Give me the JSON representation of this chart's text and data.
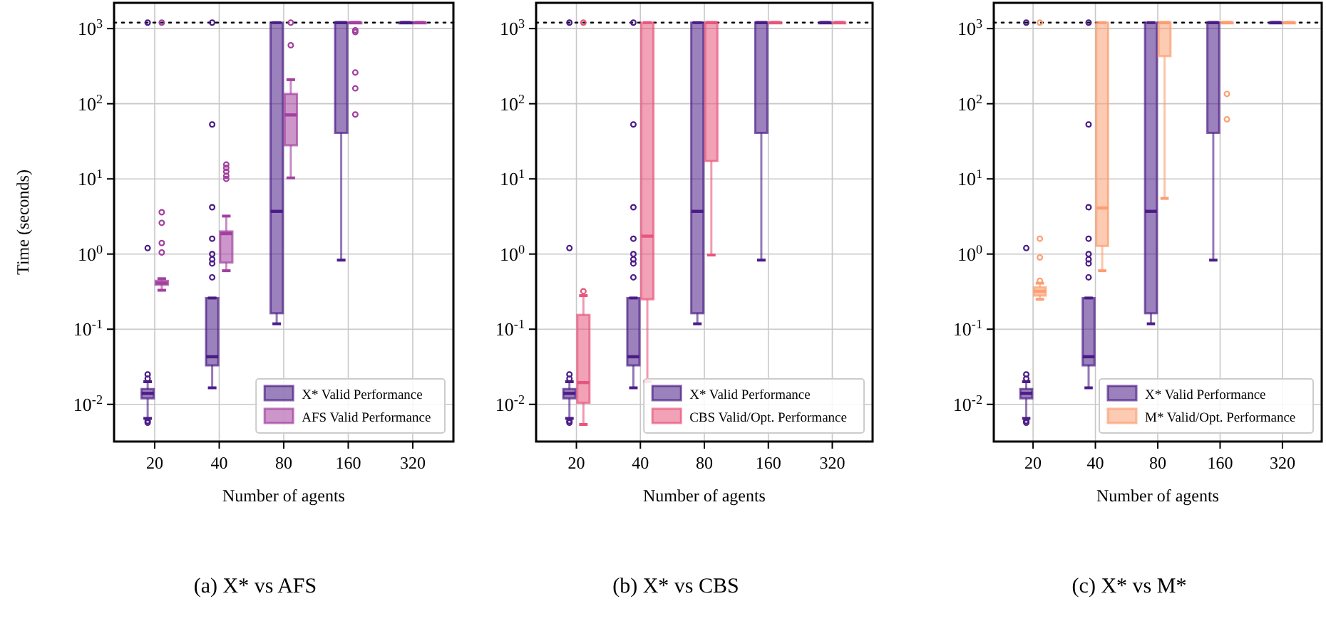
{
  "chart_data": [
    {
      "type": "box",
      "categories": [
        "20",
        "40",
        "80",
        "160",
        "320"
      ],
      "xlabel": "Number of agents",
      "ylabel": "Time (seconds)",
      "annotations": [
        "(a) X* vs AFS"
      ],
      "log": true,
      "grid": true,
      "legend": "bottom right",
      "ylim": [
        0.0032,
        2200
      ],
      "yticks": [
        {
          "value": 0.01,
          "label": "10$^{-2}$"
        },
        {
          "value": 0.1,
          "label": "10$^{-1}$"
        },
        {
          "value": 1,
          "label": "10$^{0}$"
        },
        {
          "value": 10,
          "label": "10$^{1}$"
        },
        {
          "value": 100,
          "label": "10$^{2}$"
        },
        {
          "value": 1000,
          "label": "10$^{3}$"
        }
      ],
      "ref_lines": [
        {
          "axis": "y",
          "value": 1200,
          "color": "#000000",
          "line_style": "dotted"
        }
      ],
      "series": [
        {
          "name": "X* Valid Performance",
          "color": "#4b1c86",
          "boxes": [
            {
              "low": 0.0065,
              "q1": 0.012,
              "median": 0.014,
              "q3": 0.016,
              "high": 0.02,
              "outliers": [
                0.0057,
                0.006,
                0.022,
                0.025,
                1.2,
                1200
              ]
            },
            {
              "low": 0.0166,
              "q1": 0.033,
              "median": 0.043,
              "q3": 0.26,
              "high": 0.26,
              "outliers": [
                0.49,
                0.75,
                0.85,
                1,
                1.6,
                4.2,
                53,
                1200
              ]
            },
            {
              "low": 0.118,
              "q1": 0.163,
              "median": 3.7,
              "q3": 1200,
              "high": 1200
            },
            {
              "low": 0.83,
              "q1": 41,
              "median": 1200,
              "q3": 1200,
              "high": 1200
            },
            {
              "low": 1200,
              "q1": 1200,
              "median": 1200,
              "q3": 1200,
              "high": 1200
            }
          ]
        },
        {
          "name": "AFS Valid Performance",
          "color": "#a3409e",
          "boxes": [
            {
              "low": 0.33,
              "q1": 0.39,
              "median": 0.41,
              "q3": 0.44,
              "high": 0.47,
              "outliers": [
                1.05,
                1.4,
                2.6,
                3.6,
                1200
              ]
            },
            {
              "low": 0.6,
              "q1": 0.77,
              "median": 1.87,
              "q3": 2.0,
              "high": 3.2,
              "outliers": [
                10,
                11,
                12.5,
                14,
                15.5
              ]
            },
            {
              "low": 10.3,
              "q1": 28,
              "median": 71,
              "q3": 135,
              "high": 209,
              "outliers": [
                600,
                1200
              ]
            },
            {
              "low": 1200,
              "q1": 1200,
              "median": 1200,
              "q3": 1200,
              "high": 1200,
              "outliers": [
                72,
                160,
                260,
                900,
                950
              ]
            },
            {
              "low": 1200,
              "q1": 1200,
              "median": 1200,
              "q3": 1200,
              "high": 1200
            }
          ]
        }
      ]
    },
    {
      "type": "box",
      "categories": [
        "20",
        "40",
        "80",
        "160",
        "320"
      ],
      "xlabel": "Number of agents",
      "annotations": [
        "(b) X* vs CBS"
      ],
      "log": true,
      "grid": true,
      "legend": "bottom right",
      "ylim": [
        0.0032,
        2200
      ],
      "yticks": [
        {
          "value": 0.01,
          "label": "10$^{-2}$"
        },
        {
          "value": 0.1,
          "label": "10$^{-1}$"
        },
        {
          "value": 1,
          "label": "10$^{0}$"
        },
        {
          "value": 10,
          "label": "10$^{1}$"
        },
        {
          "value": 100,
          "label": "10$^{2}$"
        },
        {
          "value": 1000,
          "label": "10$^{3}$"
        }
      ],
      "ref_lines": [
        {
          "axis": "y",
          "value": 1200,
          "color": "#000000",
          "line_style": "dotted"
        }
      ],
      "series": [
        {
          "name": "X* Valid Performance",
          "color": "#4b1c86",
          "boxes": [
            {
              "low": 0.0065,
              "q1": 0.012,
              "median": 0.014,
              "q3": 0.016,
              "high": 0.02,
              "outliers": [
                0.0057,
                0.006,
                0.022,
                0.025,
                1.2,
                1200
              ]
            },
            {
              "low": 0.0166,
              "q1": 0.033,
              "median": 0.043,
              "q3": 0.26,
              "high": 0.26,
              "outliers": [
                0.49,
                0.75,
                0.85,
                1,
                1.6,
                4.2,
                53,
                1200
              ]
            },
            {
              "low": 0.118,
              "q1": 0.163,
              "median": 3.7,
              "q3": 1200,
              "high": 1200
            },
            {
              "low": 0.83,
              "q1": 41,
              "median": 1200,
              "q3": 1200,
              "high": 1200
            },
            {
              "low": 1200,
              "q1": 1200,
              "median": 1200,
              "q3": 1200,
              "high": 1200
            }
          ]
        },
        {
          "name": "CBS Valid/Opt. Performance",
          "color": "#e8557c",
          "boxes": [
            {
              "low": 0.0054,
              "q1": 0.0105,
              "median": 0.0195,
              "q3": 0.155,
              "high": 0.28,
              "outliers": [
                0.32,
                1200
              ]
            },
            {
              "low": 0.02,
              "q1": 0.25,
              "median": 1.73,
              "q3": 1200,
              "high": 1200
            },
            {
              "low": 0.97,
              "q1": 17.3,
              "median": 1200,
              "q3": 1200,
              "high": 1200
            },
            {
              "low": 1200,
              "q1": 1200,
              "median": 1200,
              "q3": 1200,
              "high": 1200
            },
            {
              "low": 1200,
              "q1": 1200,
              "median": 1200,
              "q3": 1200,
              "high": 1200
            }
          ]
        }
      ]
    },
    {
      "type": "box",
      "categories": [
        "20",
        "40",
        "80",
        "160",
        "320"
      ],
      "xlabel": "Number of agents",
      "annotations": [
        "(c) X* vs M*"
      ],
      "log": true,
      "grid": true,
      "legend": "bottom right",
      "ylim": [
        0.0032,
        2200
      ],
      "yticks": [
        {
          "value": 0.01,
          "label": "10$^{-2}$"
        },
        {
          "value": 0.1,
          "label": "10$^{-1}$"
        },
        {
          "value": 1,
          "label": "10$^{0}$"
        },
        {
          "value": 10,
          "label": "10$^{1}$"
        },
        {
          "value": 100,
          "label": "10$^{2}$"
        },
        {
          "value": 1000,
          "label": "10$^{3}$"
        }
      ],
      "ref_lines": [
        {
          "axis": "y",
          "value": 1200,
          "color": "#000000",
          "line_style": "dotted"
        }
      ],
      "series": [
        {
          "name": "X* Valid Performance",
          "color": "#4b1c86",
          "boxes": [
            {
              "low": 0.0065,
              "q1": 0.012,
              "median": 0.014,
              "q3": 0.016,
              "high": 0.02,
              "outliers": [
                0.0057,
                0.006,
                0.022,
                0.025,
                1.2,
                1200
              ]
            },
            {
              "low": 0.0166,
              "q1": 0.033,
              "median": 0.043,
              "q3": 0.26,
              "high": 0.26,
              "outliers": [
                0.49,
                0.75,
                0.85,
                1,
                1.6,
                4.2,
                53,
                1200
              ]
            },
            {
              "low": 0.118,
              "q1": 0.163,
              "median": 3.7,
              "q3": 1200,
              "high": 1200
            },
            {
              "low": 0.83,
              "q1": 41,
              "median": 1200,
              "q3": 1200,
              "high": 1200
            },
            {
              "low": 1200,
              "q1": 1200,
              "median": 1200,
              "q3": 1200,
              "high": 1200
            }
          ]
        },
        {
          "name": "M* Valid/Opt. Performance",
          "color": "#fc9e72",
          "boxes": [
            {
              "low": 0.25,
              "q1": 0.28,
              "median": 0.32,
              "q3": 0.36,
              "high": 0.41,
              "outliers": [
                0.44,
                0.9,
                1.6,
                1200
              ]
            },
            {
              "low": 0.6,
              "q1": 1.28,
              "median": 4.1,
              "q3": 1200,
              "high": 1200
            },
            {
              "low": 5.5,
              "q1": 430,
              "median": 1200,
              "q3": 1200,
              "high": 1200
            },
            {
              "low": 1200,
              "q1": 1200,
              "median": 1200,
              "q3": 1200,
              "high": 1200,
              "outliers": [
                62,
                135
              ]
            },
            {
              "low": 1200,
              "q1": 1200,
              "median": 1200,
              "q3": 1200,
              "high": 1200
            }
          ]
        }
      ]
    }
  ]
}
